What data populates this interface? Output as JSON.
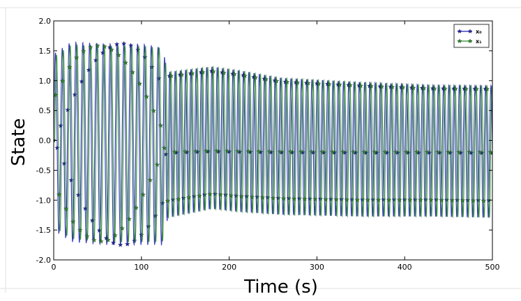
{
  "chart_data": {
    "type": "line",
    "title": "",
    "xlabel": "Time (s)",
    "ylabel": "State",
    "xlim": [
      0,
      500
    ],
    "ylim": [
      -2.0,
      2.0
    ],
    "xticks": [
      "0",
      "100",
      "200",
      "300",
      "400",
      "500"
    ],
    "yticks": [
      "2.0",
      "1.5",
      "1.0",
      "0.5",
      "0.0",
      "-0.5",
      "-1.0",
      "-1.5",
      "-2.0"
    ],
    "grid": false,
    "legend_position": "top-right",
    "marker": "star",
    "sample_interval": 4,
    "series": [
      {
        "name": "x₀",
        "color": "#1f1fb4",
        "envelope": [
          {
            "t": 0,
            "max": 1.45,
            "min": -1.5
          },
          {
            "t": 20,
            "max": 1.65,
            "min": -1.7
          },
          {
            "t": 60,
            "max": 1.62,
            "min": -1.75
          },
          {
            "t": 100,
            "max": 1.62,
            "min": -1.75
          },
          {
            "t": 124,
            "max": 1.55,
            "min": -1.75
          },
          {
            "t": 130,
            "max": 1.15,
            "min": -1.3
          },
          {
            "t": 180,
            "max": 1.24,
            "min": -1.15
          },
          {
            "t": 210,
            "max": 1.18,
            "min": -1.2
          },
          {
            "t": 260,
            "max": 1.05,
            "min": -1.25
          },
          {
            "t": 350,
            "max": 0.98,
            "min": -1.28
          },
          {
            "t": 430,
            "max": 0.93,
            "min": -1.28
          },
          {
            "t": 500,
            "max": 0.92,
            "min": -1.3
          }
        ],
        "period_segments": [
          {
            "from": 0,
            "to": 125,
            "period": 7.8
          },
          {
            "from": 125,
            "to": 500,
            "period": 6.0
          }
        ]
      },
      {
        "name": "x₁",
        "color": "#2a8a2a",
        "envelope": [
          {
            "t": 0,
            "max": 1.4,
            "min": -1.45
          },
          {
            "t": 20,
            "max": 1.6,
            "min": -1.65
          },
          {
            "t": 60,
            "max": 1.58,
            "min": -1.7
          },
          {
            "t": 100,
            "max": 1.58,
            "min": -1.7
          },
          {
            "t": 124,
            "max": 1.55,
            "min": -1.7
          },
          {
            "t": 130,
            "max": 1.15,
            "min": -1.3
          },
          {
            "t": 180,
            "max": 1.24,
            "min": -1.15
          },
          {
            "t": 210,
            "max": 1.18,
            "min": -1.2
          },
          {
            "t": 260,
            "max": 1.05,
            "min": -1.25
          },
          {
            "t": 350,
            "max": 0.98,
            "min": -1.28
          },
          {
            "t": 430,
            "max": 0.93,
            "min": -1.28
          },
          {
            "t": 500,
            "max": 0.92,
            "min": -1.3
          }
        ],
        "period_segments": [
          {
            "from": 0,
            "to": 125,
            "period": 7.8
          },
          {
            "from": 125,
            "to": 500,
            "period": 6.0
          }
        ],
        "phase_lag": 1.3
      }
    ]
  }
}
